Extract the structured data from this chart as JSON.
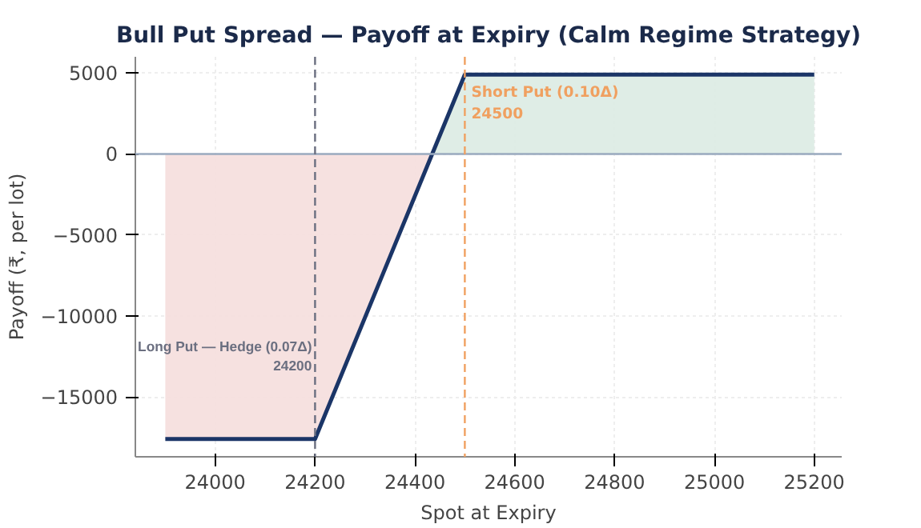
{
  "chart_data": {
    "type": "line",
    "title": "Bull Put Spread — Payoff at Expiry (Calm Regime Strategy)",
    "xlabel": "Spot at Expiry",
    "ylabel": "Payoff (₹, per lot)",
    "xlim": [
      23840,
      25255
    ],
    "ylim": [
      -18700,
      6000
    ],
    "xticks": [
      24000,
      24200,
      24400,
      24600,
      24800,
      25000,
      25200
    ],
    "yticks": [
      -15000,
      -10000,
      -5000,
      0,
      5000
    ],
    "grid": true,
    "series": [
      {
        "type": "area",
        "color": "#f5dedd",
        "x": [
          23900,
          24200,
          24435
        ],
        "values": [
          -17600,
          -17600,
          0
        ]
      },
      {
        "type": "area",
        "color": "#dcebe3",
        "x": [
          24435,
          24500,
          25200
        ],
        "values": [
          0,
          4900,
          4900
        ]
      },
      {
        "color": "#1b3567",
        "x": [
          23900,
          24200,
          24500,
          25200
        ],
        "values": [
          -17600,
          -17600,
          4900,
          4900
        ]
      }
    ],
    "ref_lines": [
      {
        "axis": "y",
        "value": 0,
        "color": "#9aaabf",
        "line_style": "solid"
      },
      {
        "axis": "x",
        "value": 24200,
        "color": "#6b6f80",
        "line_style": "dashed",
        "label": "Long Put — Hedge (0.07Δ)\n24200"
      },
      {
        "axis": "x",
        "value": 24500,
        "color": "#f0a060",
        "line_style": "dashed",
        "label": "Short Put (0.10Δ)\n24500"
      }
    ]
  }
}
